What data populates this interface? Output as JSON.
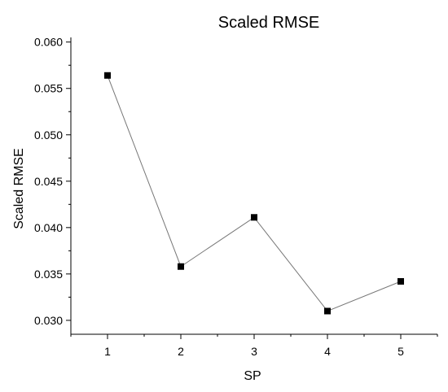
{
  "chart_data": {
    "type": "line",
    "title": "Scaled RMSE",
    "xlabel": "SP",
    "ylabel": "Scaled RMSE",
    "x": [
      1,
      2,
      3,
      4,
      5
    ],
    "series": [
      {
        "values": [
          0.0564,
          0.0358,
          0.0411,
          0.031,
          0.0342
        ]
      }
    ],
    "xlim": [
      0.5,
      5.5
    ],
    "ylim": [
      0.0285,
      0.0605
    ],
    "x_ticks": [
      "1",
      "2",
      "3",
      "4",
      "5"
    ],
    "y_ticks": [
      "0.030",
      "0.035",
      "0.040",
      "0.045",
      "0.050",
      "0.055",
      "0.060"
    ],
    "grid": false,
    "marker": "square",
    "line_color": "#777777",
    "marker_color": "#000000"
  }
}
